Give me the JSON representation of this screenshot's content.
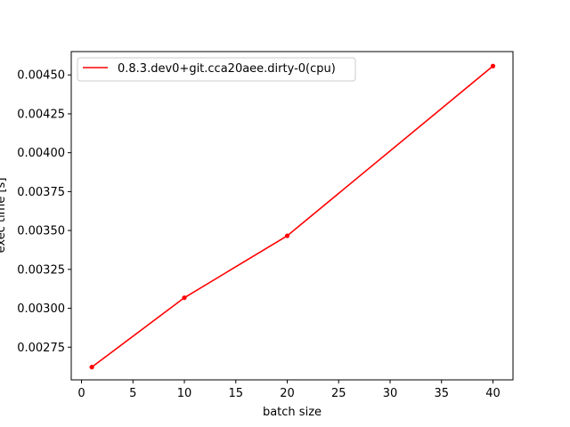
{
  "chart_data": {
    "type": "line",
    "title": "",
    "xlabel": "batch size",
    "ylabel": "exec time [s]",
    "xlim": [
      -1,
      41.95
    ],
    "ylim": [
      0.00254,
      0.00465
    ],
    "xticks": [
      0,
      5,
      10,
      15,
      20,
      25,
      30,
      35,
      40
    ],
    "xtick_labels": [
      "0",
      "5",
      "10",
      "15",
      "20",
      "25",
      "30",
      "35",
      "40"
    ],
    "yticks": [
      0.00275,
      0.003,
      0.00325,
      0.0035,
      0.00375,
      0.004,
      0.00425,
      0.0045
    ],
    "ytick_labels": [
      "0.00275",
      "0.00300",
      "0.00325",
      "0.00350",
      "0.00375",
      "0.00400",
      "0.00425",
      "0.00450"
    ],
    "grid": false,
    "legend_position": "top-left",
    "series": [
      {
        "name": "0.8.3.dev0+git.cca20aee.dirty-0(cpu)",
        "color": "#ff0000",
        "marker": "dot",
        "x": [
          1,
          10,
          20,
          40
        ],
        "y": [
          0.002622,
          0.003068,
          0.003466,
          0.004557
        ]
      }
    ]
  }
}
